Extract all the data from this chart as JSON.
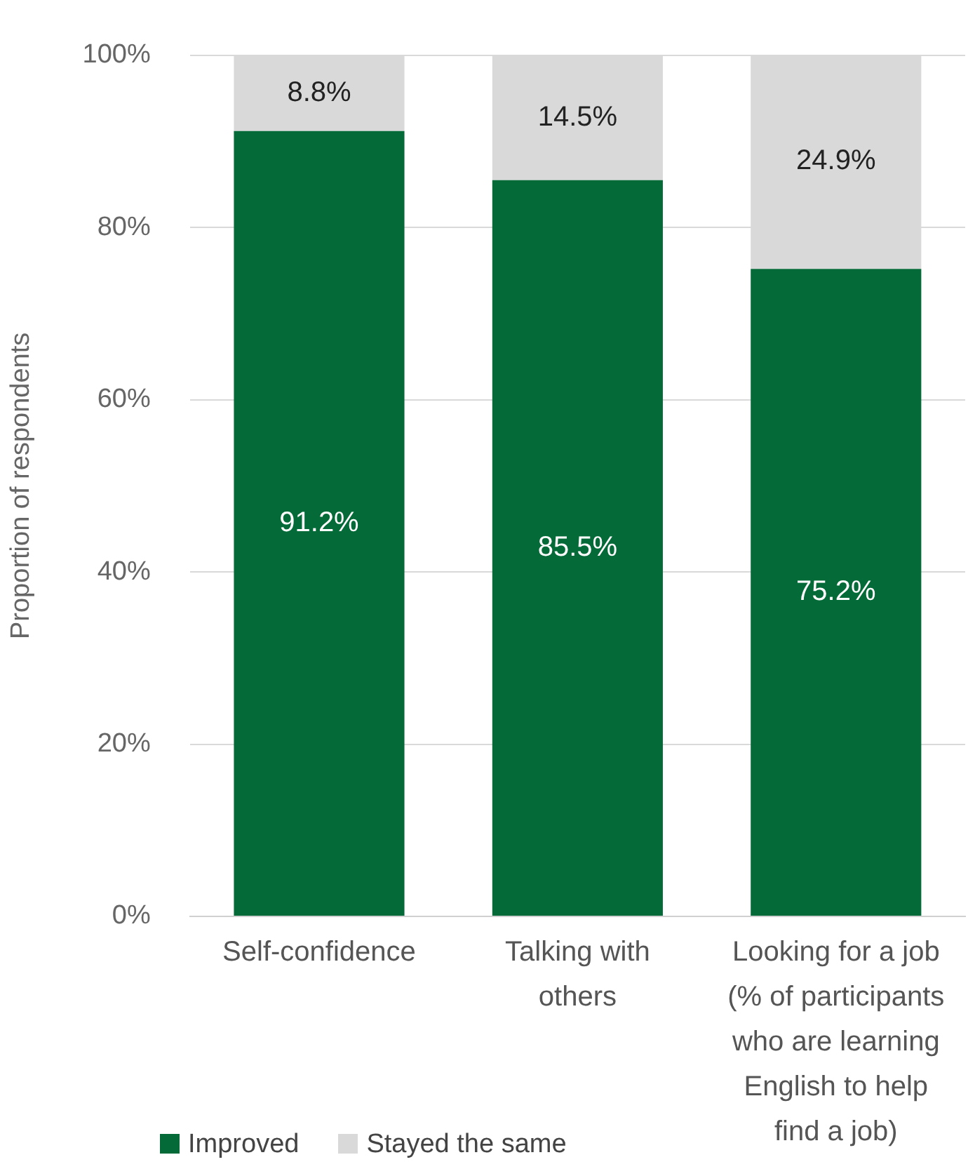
{
  "chart_data": {
    "type": "bar",
    "stacked": true,
    "ylabel": "Proportion of respondents",
    "categories": [
      "Self-confidence",
      "Talking with others",
      "Looking for a job (% of participants who are learning English to help find a job)"
    ],
    "series": [
      {
        "name": "Improved",
        "color": "#046a38",
        "values": [
          91.2,
          85.5,
          75.2
        ],
        "value_labels": [
          "91.2%",
          "85.5%",
          "75.2%"
        ]
      },
      {
        "name": "Stayed the same",
        "color": "#d9d9d9",
        "values": [
          8.8,
          14.5,
          24.9
        ],
        "value_labels": [
          "8.8%",
          "14.5%",
          "24.9%"
        ]
      }
    ],
    "ylim": [
      0,
      100
    ],
    "yticks": [
      {
        "value": 0,
        "label": "0%"
      },
      {
        "value": 20,
        "label": "20%"
      },
      {
        "value": 40,
        "label": "40%"
      },
      {
        "value": 60,
        "label": "60%"
      },
      {
        "value": 80,
        "label": "80%"
      },
      {
        "value": 100,
        "label": "100%"
      }
    ],
    "grid": "y",
    "legend": "bottom left"
  }
}
